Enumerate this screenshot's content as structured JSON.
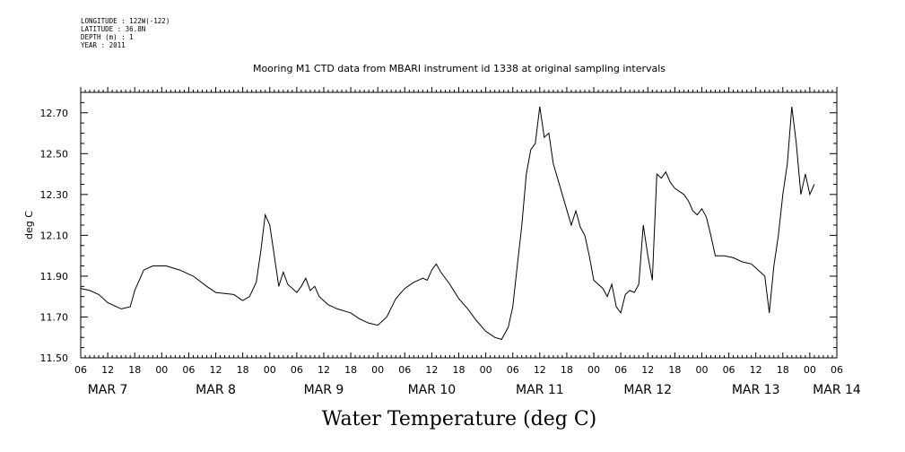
{
  "header": {
    "longitude": "LONGITUDE : 122W(-122)",
    "latitude": "LATITUDE : 36.8N",
    "depth": "DEPTH (m) : 1",
    "year": "YEAR : 2011"
  },
  "chart_data": {
    "type": "line",
    "title": "Mooring M1 CTD data from MBARI instrument id 1338 at original sampling intervals",
    "xlabel": "Water Temperature (deg C)",
    "ylabel": "deg C",
    "xlim_hours": [
      0,
      168
    ],
    "ylim": [
      11.5,
      12.8
    ],
    "y_tick_labels": [
      "11.50",
      "11.70",
      "11.90",
      "12.10",
      "12.30",
      "12.50",
      "12.70"
    ],
    "hour_tick_labels": [
      "06",
      "12",
      "18",
      "00",
      "06",
      "12",
      "18",
      "00",
      "06",
      "12",
      "18",
      "00",
      "06",
      "12",
      "18",
      "00",
      "06",
      "12",
      "18",
      "00",
      "06",
      "12",
      "18",
      "00",
      "06",
      "12",
      "18",
      "00",
      "06"
    ],
    "day_labels": [
      {
        "text": "MAR  7",
        "hour": 6
      },
      {
        "text": "MAR  8",
        "hour": 30
      },
      {
        "text": "MAR  9",
        "hour": 54
      },
      {
        "text": "MAR 10",
        "hour": 78
      },
      {
        "text": "MAR 11",
        "hour": 102
      },
      {
        "text": "MAR 12",
        "hour": 126
      },
      {
        "text": "MAR 13",
        "hour": 150
      },
      {
        "text": "MAR 14",
        "hour": 168
      }
    ],
    "series": [
      {
        "points": [
          [
            0,
            11.84
          ],
          [
            2,
            11.83
          ],
          [
            4,
            11.81
          ],
          [
            6,
            11.77
          ],
          [
            9,
            11.74
          ],
          [
            11,
            11.75
          ],
          [
            12,
            11.83
          ],
          [
            14,
            11.93
          ],
          [
            16,
            11.95
          ],
          [
            19,
            11.95
          ],
          [
            22,
            11.93
          ],
          [
            25,
            11.9
          ],
          [
            28,
            11.85
          ],
          [
            30,
            11.82
          ],
          [
            34,
            11.81
          ],
          [
            36,
            11.78
          ],
          [
            37.5,
            11.8
          ],
          [
            39,
            11.87
          ],
          [
            40,
            12.02
          ],
          [
            41,
            12.2
          ],
          [
            42,
            12.15
          ],
          [
            43,
            12.0
          ],
          [
            44,
            11.85
          ],
          [
            45,
            11.92
          ],
          [
            46,
            11.86
          ],
          [
            48,
            11.82
          ],
          [
            49,
            11.85
          ],
          [
            50,
            11.89
          ],
          [
            51,
            11.83
          ],
          [
            52,
            11.85
          ],
          [
            53,
            11.8
          ],
          [
            55,
            11.76
          ],
          [
            57,
            11.74
          ],
          [
            60,
            11.72
          ],
          [
            62,
            11.69
          ],
          [
            64,
            11.67
          ],
          [
            66,
            11.66
          ],
          [
            68,
            11.7
          ],
          [
            70,
            11.79
          ],
          [
            72,
            11.84
          ],
          [
            74,
            11.87
          ],
          [
            76,
            11.89
          ],
          [
            77,
            11.88
          ],
          [
            78,
            11.93
          ],
          [
            79,
            11.96
          ],
          [
            80,
            11.92
          ],
          [
            82,
            11.86
          ],
          [
            84,
            11.79
          ],
          [
            86,
            11.74
          ],
          [
            88,
            11.68
          ],
          [
            90,
            11.63
          ],
          [
            92,
            11.6
          ],
          [
            93.5,
            11.59
          ],
          [
            95,
            11.65
          ],
          [
            96,
            11.75
          ],
          [
            97,
            11.95
          ],
          [
            98,
            12.15
          ],
          [
            99,
            12.4
          ],
          [
            100,
            12.52
          ],
          [
            101,
            12.55
          ],
          [
            102,
            12.73
          ],
          [
            103,
            12.58
          ],
          [
            104,
            12.6
          ],
          [
            105,
            12.45
          ],
          [
            107,
            12.3
          ],
          [
            109,
            12.15
          ],
          [
            110,
            12.22
          ],
          [
            111,
            12.14
          ],
          [
            112,
            12.1
          ],
          [
            113,
            12.0
          ],
          [
            114,
            11.88
          ],
          [
            116,
            11.84
          ],
          [
            117,
            11.8
          ],
          [
            118,
            11.86
          ],
          [
            119,
            11.75
          ],
          [
            120,
            11.72
          ],
          [
            121,
            11.81
          ],
          [
            122,
            11.83
          ],
          [
            123,
            11.82
          ],
          [
            124,
            11.86
          ],
          [
            125,
            12.15
          ],
          [
            126,
            12.0
          ],
          [
            127,
            11.88
          ],
          [
            128,
            12.4
          ],
          [
            129,
            12.38
          ],
          [
            130,
            12.41
          ],
          [
            131,
            12.36
          ],
          [
            132,
            12.33
          ],
          [
            134,
            12.3
          ],
          [
            135,
            12.27
          ],
          [
            136,
            12.22
          ],
          [
            137,
            12.2
          ],
          [
            138,
            12.23
          ],
          [
            139,
            12.19
          ],
          [
            140,
            12.1
          ],
          [
            141,
            12.0
          ],
          [
            143,
            12.0
          ],
          [
            145,
            11.99
          ],
          [
            147,
            11.97
          ],
          [
            149,
            11.96
          ],
          [
            151,
            11.92
          ],
          [
            152,
            11.9
          ],
          [
            153,
            11.72
          ],
          [
            154,
            11.95
          ],
          [
            155,
            12.1
          ],
          [
            156,
            12.3
          ],
          [
            157,
            12.45
          ],
          [
            158,
            12.73
          ],
          [
            159,
            12.55
          ],
          [
            160,
            12.3
          ],
          [
            161,
            12.4
          ],
          [
            162,
            12.3
          ],
          [
            163,
            12.35
          ]
        ]
      }
    ]
  }
}
